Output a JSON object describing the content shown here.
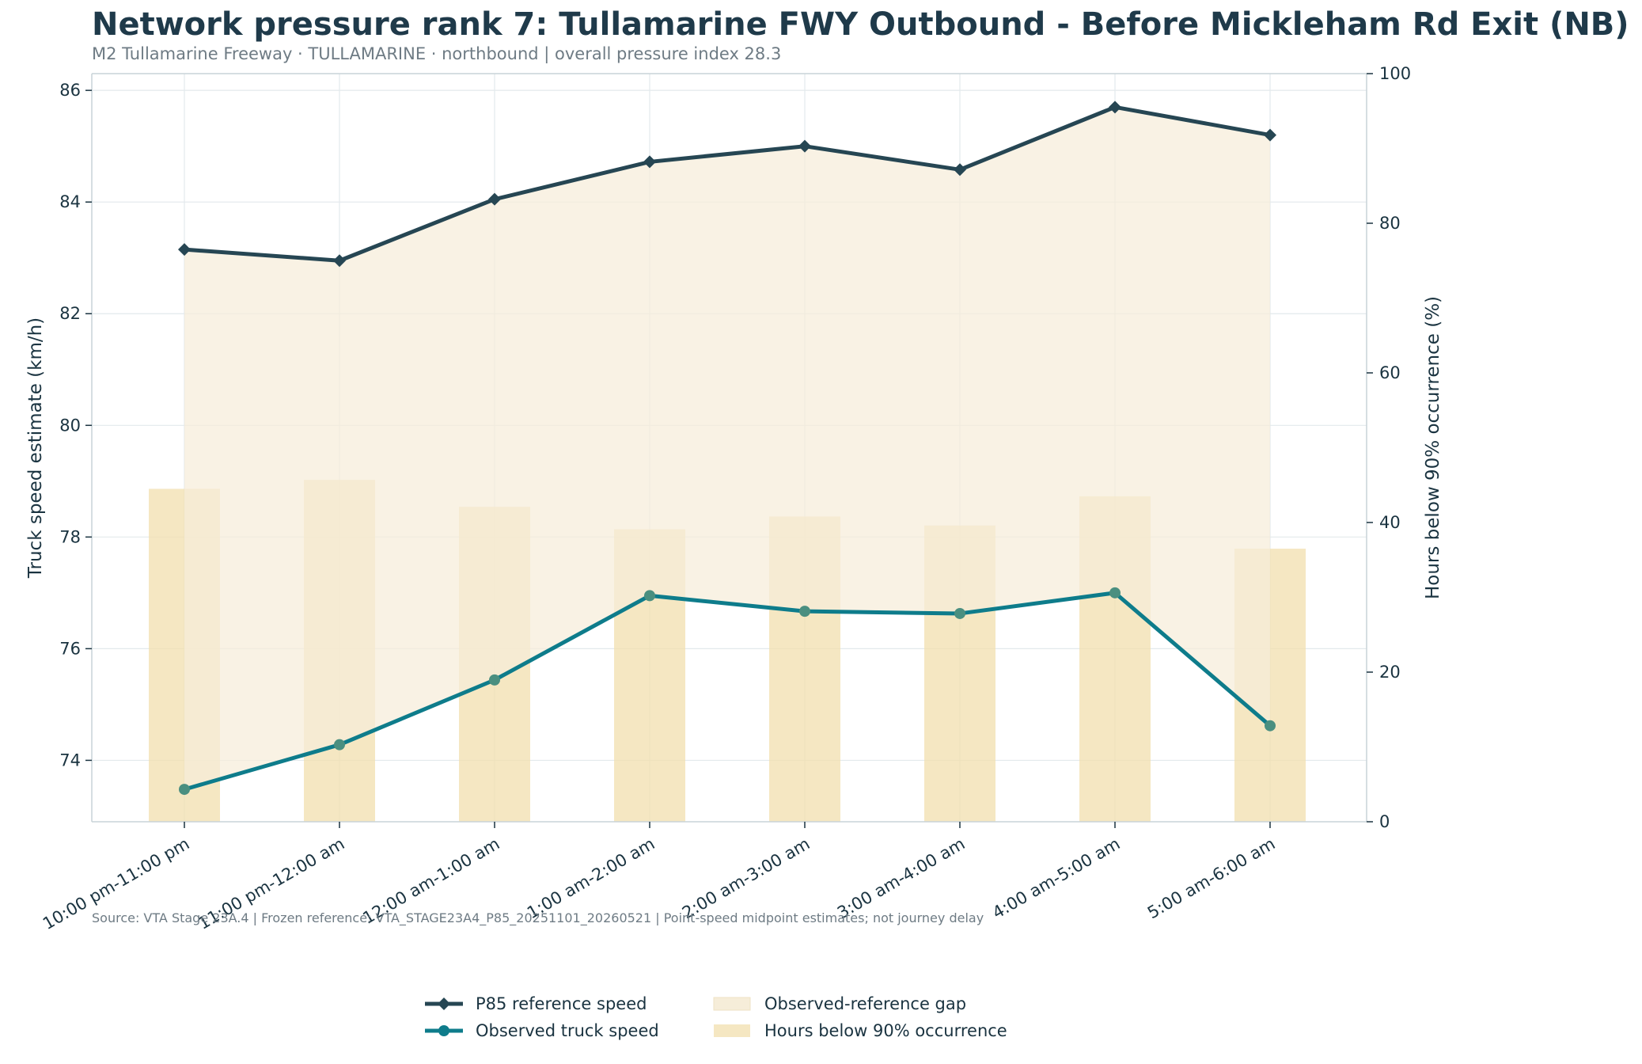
{
  "title": "Network pressure rank 7: Tullamarine FWY Outbound - Before Mickleham Rd Exit (NB)",
  "subtitle": "M2 Tullamarine Freeway · TULLAMARINE · northbound | overall pressure index 28.3",
  "source": "Source: VTA Stage 23A.4 | Frozen reference: VTA_STAGE23A4_P85_20251101_20260521 | Point-speed midpoint estimates; not journey delay",
  "colors": {
    "reference": "#264653",
    "observed": "#0e7c8b",
    "observed_marker": "#4a8f80",
    "gap_fill": "#f6edd9",
    "bars": "#f2dfae",
    "grid": "#e3e9ec",
    "axis": "#c9d3d8"
  },
  "chart_data": {
    "type": "line",
    "categories": [
      "10:00 pm-11:00 pm",
      "11:00 pm-12:00 am",
      "12:00 am-1:00 am",
      "1:00 am-2:00 am",
      "2:00 am-3:00 am",
      "3:00 am-4:00 am",
      "4:00 am-5:00 am",
      "5:00 am-6:00 am"
    ],
    "series": [
      {
        "name": "P85 reference speed",
        "axis": "left",
        "type": "line",
        "marker": "diamond",
        "values": [
          83.15,
          82.95,
          84.05,
          84.72,
          85.0,
          84.58,
          85.7,
          85.2
        ]
      },
      {
        "name": "Observed truck speed",
        "axis": "left",
        "type": "line",
        "marker": "circle",
        "values": [
          73.48,
          74.28,
          75.44,
          76.95,
          76.67,
          76.63,
          77.0,
          74.62
        ]
      },
      {
        "name": "Hours below 90% occurrence",
        "axis": "right",
        "type": "bar",
        "values": [
          44.5,
          45.7,
          42.1,
          39.1,
          40.8,
          39.6,
          43.5,
          36.5
        ]
      }
    ],
    "gap_label": "Observed-reference gap",
    "ylabel": "Truck speed estimate (km/h)",
    "ylabel_right": "Hours below 90% occurrence (%)",
    "ylim": [
      72.9,
      86.3
    ],
    "yticks": [
      74,
      76,
      78,
      80,
      82,
      84,
      86
    ],
    "ylim_right": [
      0,
      100
    ],
    "yticks_right": [
      0,
      20,
      40,
      60,
      80,
      100
    ],
    "grid": true,
    "legend_position": "bottom-center"
  },
  "legend": {
    "reference": "P85 reference speed",
    "observed": "Observed truck speed",
    "gap": "Observed-reference gap",
    "bars": "Hours below 90% occurrence"
  }
}
